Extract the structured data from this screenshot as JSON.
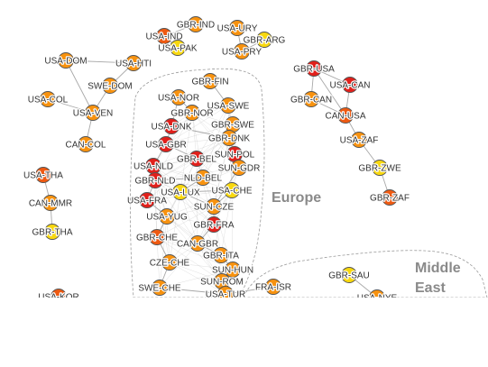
{
  "regions": [
    {
      "id": "europe",
      "lines": [
        "Europe"
      ]
    },
    {
      "id": "middle-east",
      "lines": [
        "Middle",
        "East"
      ]
    }
  ],
  "colors": {
    "red": "#e0201b",
    "orange_red": "#ee5a12",
    "orange": "#f7920f",
    "yellow": "#f8d80f",
    "edge": "#b5b5b5",
    "outline": "#555555"
  },
  "nodes": [
    {
      "id": "GBR-IND",
      "color": "orange"
    },
    {
      "id": "USA-IND",
      "color": "orange_red"
    },
    {
      "id": "USA-URY",
      "color": "orange"
    },
    {
      "id": "GBR-ARG",
      "color": "yellow"
    },
    {
      "id": "USA-PAK",
      "color": "yellow"
    },
    {
      "id": "USA-PRY",
      "color": "orange"
    },
    {
      "id": "USA-DOM",
      "color": "orange"
    },
    {
      "id": "USA-HTI",
      "color": "orange"
    },
    {
      "id": "SWE-DOM",
      "color": "orange"
    },
    {
      "id": "USA-COL",
      "color": "orange"
    },
    {
      "id": "USA-VEN",
      "color": "orange"
    },
    {
      "id": "CAN-COL",
      "color": "orange"
    },
    {
      "id": "USA-THA",
      "color": "orange_red"
    },
    {
      "id": "CAN-MMR",
      "color": "orange"
    },
    {
      "id": "GBR-THA",
      "color": "yellow"
    },
    {
      "id": "USA-KOR",
      "color": "orange_red"
    },
    {
      "id": "GBR-FIN",
      "color": "orange"
    },
    {
      "id": "USA-NOR",
      "color": "orange"
    },
    {
      "id": "USA-SWE",
      "color": "orange"
    },
    {
      "id": "GBR-NOR",
      "color": "orange"
    },
    {
      "id": "USA-DNK",
      "color": "red"
    },
    {
      "id": "GBR-SWE",
      "color": "orange"
    },
    {
      "id": "GBR-DNK",
      "color": "orange"
    },
    {
      "id": "USA-GBR",
      "color": "red"
    },
    {
      "id": "GBR-BEL",
      "color": "red"
    },
    {
      "id": "USA-NLD",
      "color": "red"
    },
    {
      "id": "SUN-POL",
      "color": "red"
    },
    {
      "id": "SUN-GDR",
      "color": "orange"
    },
    {
      "id": "GBR-NLD",
      "color": "red"
    },
    {
      "id": "NLD-BEL",
      "color": "orange"
    },
    {
      "id": "USA-LUX",
      "color": "yellow"
    },
    {
      "id": "USA-CHE",
      "color": "yellow"
    },
    {
      "id": "USA-FRA",
      "color": "red"
    },
    {
      "id": "SUN-CZE",
      "color": "orange"
    },
    {
      "id": "USA-YUG",
      "color": "orange"
    },
    {
      "id": "GBR-FRA",
      "color": "red"
    },
    {
      "id": "GBR-CHE",
      "color": "orange_red"
    },
    {
      "id": "CAN-GBR",
      "color": "orange"
    },
    {
      "id": "GBR-ITA",
      "color": "orange"
    },
    {
      "id": "CZE-CHE",
      "color": "orange"
    },
    {
      "id": "SUN-HUN",
      "color": "orange"
    },
    {
      "id": "SUN-ROM",
      "color": "orange"
    },
    {
      "id": "SWE-CHE",
      "color": "orange"
    },
    {
      "id": "USA-TUR",
      "color": "orange"
    },
    {
      "id": "FRA-ISR",
      "color": "orange"
    },
    {
      "id": "GBR-USA",
      "color": "red"
    },
    {
      "id": "USA-CAN",
      "color": "red"
    },
    {
      "id": "GBR-CAN",
      "color": "orange"
    },
    {
      "id": "CAN-USA",
      "color": "orange_red"
    },
    {
      "id": "USA-ZAF",
      "color": "orange"
    },
    {
      "id": "GBR-ZWE",
      "color": "yellow"
    },
    {
      "id": "GBR-ZAF",
      "color": "orange_red"
    },
    {
      "id": "GBR-SAU",
      "color": "yellow"
    },
    {
      "id": "USA-NYE",
      "color": "orange"
    }
  ],
  "edges": [
    [
      "GBR-IND",
      "USA-IND"
    ],
    [
      "USA-IND",
      "USA-PAK"
    ],
    [
      "USA-URY",
      "USA-PRY"
    ],
    [
      "GBR-ARG",
      "USA-PRY"
    ],
    [
      "USA-DOM",
      "USA-HTI"
    ],
    [
      "USA-HTI",
      "SWE-DOM"
    ],
    [
      "USA-DOM",
      "USA-VEN"
    ],
    [
      "SWE-DOM",
      "USA-VEN"
    ],
    [
      "USA-COL",
      "USA-VEN"
    ],
    [
      "USA-VEN",
      "CAN-COL"
    ],
    [
      "USA-THA",
      "CAN-MMR"
    ],
    [
      "CAN-MMR",
      "GBR-THA"
    ],
    [
      "GBR-USA",
      "USA-CAN"
    ],
    [
      "GBR-USA",
      "GBR-CAN"
    ],
    [
      "GBR-USA",
      "CAN-USA"
    ],
    [
      "USA-CAN",
      "CAN-USA"
    ],
    [
      "GBR-CAN",
      "CAN-USA"
    ],
    [
      "CAN-USA",
      "USA-ZAF"
    ],
    [
      "USA-ZAF",
      "GBR-ZWE"
    ],
    [
      "GBR-ZWE",
      "GBR-ZAF"
    ],
    [
      "GBR-SAU",
      "USA-NYE"
    ],
    [
      "USA-NOR",
      "GBR-NOR"
    ],
    [
      "GBR-NOR",
      "USA-SWE"
    ],
    [
      "USA-DNK",
      "GBR-DNK"
    ],
    [
      "USA-GBR",
      "GBR-BEL"
    ],
    [
      "GBR-FIN",
      "USA-SWE"
    ],
    [
      "USA-NLD",
      "GBR-NLD"
    ],
    [
      "GBR-NLD",
      "USA-FRA"
    ],
    [
      "USA-FRA",
      "USA-YUG"
    ],
    [
      "USA-YUG",
      "GBR-CHE"
    ],
    [
      "GBR-CHE",
      "CZE-CHE"
    ],
    [
      "CZE-CHE",
      "SWE-CHE"
    ],
    [
      "SWE-CHE",
      "USA-TUR"
    ],
    [
      "GBR-FRA",
      "CAN-GBR"
    ],
    [
      "CAN-GBR",
      "GBR-ITA"
    ],
    [
      "GBR-ITA",
      "SUN-HUN"
    ],
    [
      "SUN-HUN",
      "SUN-ROM"
    ],
    [
      "SUN-ROM",
      "USA-TUR"
    ],
    [
      "USA-TUR",
      "FRA-ISR"
    ],
    [
      "SUN-POL",
      "SUN-GDR"
    ],
    [
      "SUN-GDR",
      "SUN-CZE"
    ],
    [
      "SUN-CZE",
      "GBR-FRA"
    ],
    [
      "NLD-BEL",
      "USA-LUX"
    ],
    [
      "USA-LUX",
      "USA-CHE"
    ],
    [
      "GBR-SWE",
      "GBR-DNK"
    ],
    [
      "USA-GBR",
      "USA-NLD"
    ],
    [
      "GBR-BEL",
      "SUN-POL"
    ],
    [
      "USA-CHE",
      "SUN-CZE"
    ],
    [
      "USA-DNK",
      "USA-GBR"
    ],
    [
      "USA-LUX",
      "SUN-CZE"
    ],
    [
      "GBR-NLD",
      "NLD-BEL"
    ],
    [
      "USA-NOR",
      "USA-DNK"
    ],
    [
      "GBR-DNK",
      "SUN-POL"
    ]
  ]
}
